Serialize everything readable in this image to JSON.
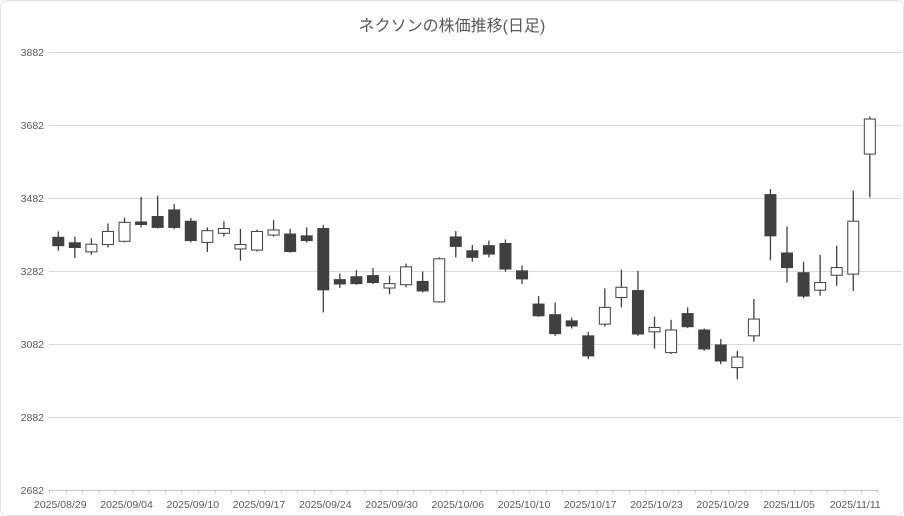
{
  "title": "ネクソンの株価推移(日足)",
  "colors": {
    "up_fill": "#ffffff",
    "down_fill": "#404040",
    "outline": "#404040",
    "gridline": "#d9d9d9",
    "axis_line": "#c6c6c6",
    "text": "#595959",
    "chart_border": "#e2e2e2"
  },
  "chart_data": {
    "type": "candlestick",
    "title": "ネクソンの株価推移(日足)",
    "legend": "none",
    "grid": "horizontal",
    "y_axis": {
      "min": 2682,
      "max": 3882,
      "step": 200,
      "ticks": [
        3882,
        3682,
        3482,
        3282,
        3082,
        2882,
        2682
      ]
    },
    "x_axis": {
      "label_interval": 4,
      "visible_labels": [
        "2025/08/29",
        "2025/09/04",
        "2025/09/10",
        "2025/09/17",
        "2025/09/24",
        "2025/09/30",
        "2025/10/06",
        "2025/10/10",
        "2025/10/17",
        "2025/10/23",
        "2025/10/29",
        "2025/11/05",
        "2025/11/11"
      ]
    },
    "candles": [
      {
        "date": "2025/08/29",
        "open": 3373,
        "high": 3389,
        "low": 3336,
        "close": 3350
      },
      {
        "date": "2025/09/01",
        "open": 3358,
        "high": 3375,
        "low": 3316,
        "close": 3345
      },
      {
        "date": "2025/09/02",
        "open": 3333,
        "high": 3370,
        "low": 3325,
        "close": 3354
      },
      {
        "date": "2025/09/03",
        "open": 3353,
        "high": 3411,
        "low": 3345,
        "close": 3389
      },
      {
        "date": "2025/09/04",
        "open": 3362,
        "high": 3427,
        "low": 3359,
        "close": 3414
      },
      {
        "date": "2025/09/05",
        "open": 3415,
        "high": 3484,
        "low": 3400,
        "close": 3408
      },
      {
        "date": "2025/09/08",
        "open": 3430,
        "high": 3487,
        "low": 3397,
        "close": 3400
      },
      {
        "date": "2025/09/09",
        "open": 3448,
        "high": 3464,
        "low": 3395,
        "close": 3400
      },
      {
        "date": "2025/09/10",
        "open": 3417,
        "high": 3426,
        "low": 3359,
        "close": 3364
      },
      {
        "date": "2025/09/11",
        "open": 3359,
        "high": 3400,
        "low": 3333,
        "close": 3391
      },
      {
        "date": "2025/09/12",
        "open": 3384,
        "high": 3417,
        "low": 3375,
        "close": 3397
      },
      {
        "date": "2025/09/16",
        "open": 3341,
        "high": 3396,
        "low": 3309,
        "close": 3353
      },
      {
        "date": "2025/09/17",
        "open": 3338,
        "high": 3394,
        "low": 3334,
        "close": 3389
      },
      {
        "date": "2025/09/18",
        "open": 3379,
        "high": 3420,
        "low": 3375,
        "close": 3393
      },
      {
        "date": "2025/09/19",
        "open": 3382,
        "high": 3396,
        "low": 3331,
        "close": 3334
      },
      {
        "date": "2025/09/22",
        "open": 3377,
        "high": 3400,
        "low": 3359,
        "close": 3364
      },
      {
        "date": "2025/09/24",
        "open": 3397,
        "high": 3407,
        "low": 3167,
        "close": 3229
      },
      {
        "date": "2025/09/25",
        "open": 3257,
        "high": 3274,
        "low": 3234,
        "close": 3245
      },
      {
        "date": "2025/09/26",
        "open": 3265,
        "high": 3283,
        "low": 3243,
        "close": 3246
      },
      {
        "date": "2025/09/29",
        "open": 3268,
        "high": 3289,
        "low": 3245,
        "close": 3249
      },
      {
        "date": "2025/09/30",
        "open": 3234,
        "high": 3268,
        "low": 3217,
        "close": 3246
      },
      {
        "date": "2025/10/01",
        "open": 3243,
        "high": 3301,
        "low": 3236,
        "close": 3292
      },
      {
        "date": "2025/10/02",
        "open": 3252,
        "high": 3279,
        "low": 3222,
        "close": 3226
      },
      {
        "date": "2025/10/03",
        "open": 3196,
        "high": 3318,
        "low": 3194,
        "close": 3314
      },
      {
        "date": "2025/10/06",
        "open": 3374,
        "high": 3390,
        "low": 3318,
        "close": 3348
      },
      {
        "date": "2025/10/07",
        "open": 3336,
        "high": 3352,
        "low": 3306,
        "close": 3318
      },
      {
        "date": "2025/10/08",
        "open": 3350,
        "high": 3364,
        "low": 3318,
        "close": 3327
      },
      {
        "date": "2025/10/09",
        "open": 3356,
        "high": 3367,
        "low": 3279,
        "close": 3286
      },
      {
        "date": "2025/10/10",
        "open": 3281,
        "high": 3296,
        "low": 3245,
        "close": 3259
      },
      {
        "date": "2025/10/14",
        "open": 3190,
        "high": 3212,
        "low": 3155,
        "close": 3158
      },
      {
        "date": "2025/10/15",
        "open": 3161,
        "high": 3194,
        "low": 3103,
        "close": 3109
      },
      {
        "date": "2025/10/16",
        "open": 3144,
        "high": 3153,
        "low": 3123,
        "close": 3130
      },
      {
        "date": "2025/10/17",
        "open": 3103,
        "high": 3114,
        "low": 3039,
        "close": 3048
      },
      {
        "date": "2025/10/20",
        "open": 3135,
        "high": 3233,
        "low": 3128,
        "close": 3181
      },
      {
        "date": "2025/10/21",
        "open": 3208,
        "high": 3284,
        "low": 3181,
        "close": 3236
      },
      {
        "date": "2025/10/22",
        "open": 3227,
        "high": 3281,
        "low": 3103,
        "close": 3108
      },
      {
        "date": "2025/10/23",
        "open": 3114,
        "high": 3156,
        "low": 3068,
        "close": 3126
      },
      {
        "date": "2025/10/24",
        "open": 3057,
        "high": 3147,
        "low": 3053,
        "close": 3119
      },
      {
        "date": "2025/10/27",
        "open": 3164,
        "high": 3181,
        "low": 3124,
        "close": 3128
      },
      {
        "date": "2025/10/28",
        "open": 3119,
        "high": 3123,
        "low": 3062,
        "close": 3067
      },
      {
        "date": "2025/10/29",
        "open": 3078,
        "high": 3094,
        "low": 3025,
        "close": 3034
      },
      {
        "date": "2025/10/30",
        "open": 3016,
        "high": 3062,
        "low": 2984,
        "close": 3045
      },
      {
        "date": "2025/10/31",
        "open": 3103,
        "high": 3204,
        "low": 3087,
        "close": 3149
      },
      {
        "date": "2025/11/04",
        "open": 3490,
        "high": 3505,
        "low": 3310,
        "close": 3377
      },
      {
        "date": "2025/11/05",
        "open": 3330,
        "high": 3403,
        "low": 3249,
        "close": 3290
      },
      {
        "date": "2025/11/06",
        "open": 3276,
        "high": 3306,
        "low": 3206,
        "close": 3212
      },
      {
        "date": "2025/11/07",
        "open": 3228,
        "high": 3325,
        "low": 3213,
        "close": 3249
      },
      {
        "date": "2025/11/10",
        "open": 3269,
        "high": 3350,
        "low": 3240,
        "close": 3290
      },
      {
        "date": "2025/11/11",
        "open": 3272,
        "high": 3501,
        "low": 3226,
        "close": 3417
      },
      {
        "date": "2025/11/12",
        "open": 3601,
        "high": 3704,
        "low": 3482,
        "close": 3697
      }
    ]
  }
}
